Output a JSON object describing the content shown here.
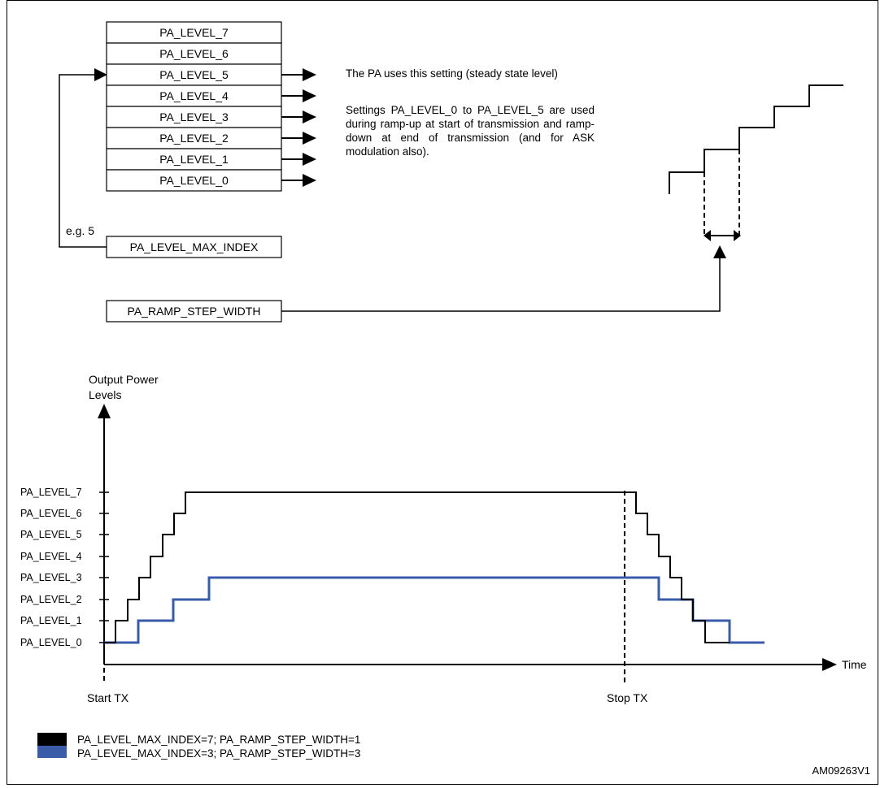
{
  "registers": [
    "PA_LEVEL_7",
    "PA_LEVEL_6",
    "PA_LEVEL_5",
    "PA_LEVEL_4",
    "PA_LEVEL_3",
    "PA_LEVEL_2",
    "PA_LEVEL_1",
    "PA_LEVEL_0"
  ],
  "max_index_box": "PA_LEVEL_MAX_INDEX",
  "ramp_step_box": "PA_RAMP_STEP_WIDTH",
  "example_label": "e.g. 5",
  "descriptions": {
    "steady": "The PA uses this setting (steady state level)",
    "ramp": "Settings PA_LEVEL_0 to PA_LEVEL_5 are used during ramp-up at start of transmission and ramp-down at end of transmission (and for ASK modulation also)."
  },
  "chart": {
    "y_title_line1": "Output Power",
    "y_title_line2": "Levels",
    "x_title": "Time",
    "y_levels": [
      "PA_LEVEL_0",
      "PA_LEVEL_1",
      "PA_LEVEL_2",
      "PA_LEVEL_3",
      "PA_LEVEL_4",
      "PA_LEVEL_5",
      "PA_LEVEL_6",
      "PA_LEVEL_7"
    ],
    "start_label": "Start TX",
    "stop_label": "Stop TX"
  },
  "legend": [
    {
      "label": "PA_LEVEL_MAX_INDEX=7; PA_RAMP_STEP_WIDTH=1",
      "color": "#000000"
    },
    {
      "label": "PA_LEVEL_MAX_INDEX=3; PA_RAMP_STEP_WIDTH=3",
      "color": "#3a5ca8"
    }
  ],
  "figure_id": "AM09263V1"
}
